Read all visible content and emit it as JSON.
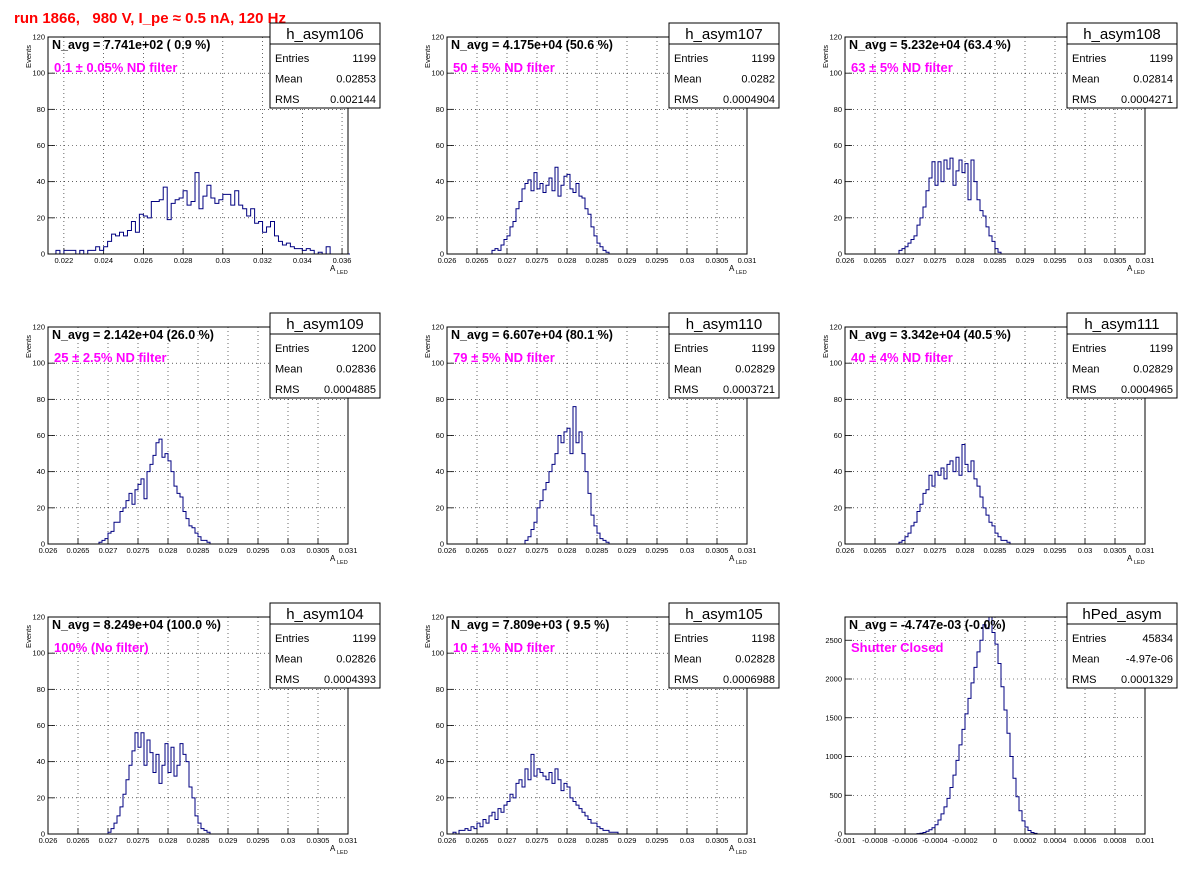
{
  "page_title": "run 1866,   980 V, I_pe ≈ 0.5 nA, 120 Hz",
  "colors": {
    "histogram": "#000080",
    "annotation": "#ff00ff",
    "title": "#ff0000",
    "grid": "#000000"
  },
  "chart_data": [
    {
      "type": "bar",
      "name": "h_asym106",
      "navg": "N_avg = 7.741e+02 ( 0.9 %)",
      "filter_label": "0.1 ± 0.05% ND filter",
      "stats": {
        "entries_label": "Entries",
        "entries": "1199",
        "mean_label": "Mean",
        "mean": "0.02853",
        "rms_label": "RMS",
        "rms": "0.002144"
      },
      "ylabel": "Events",
      "xlabel": "A",
      "xlabel_sub": "LED",
      "xlim": [
        0.0212,
        0.0363
      ],
      "ylim": [
        0,
        120
      ],
      "yticks": [
        0,
        20,
        40,
        60,
        80,
        100,
        120
      ],
      "xticks": [
        0.022,
        0.024,
        0.026,
        0.028,
        0.03,
        0.032,
        0.034,
        0.036
      ],
      "xtick_labels": [
        "0.022",
        "0.024",
        "0.026",
        "0.028",
        "0.03",
        "0.032",
        "0.034",
        "0.036"
      ],
      "bin_start": 0.0212,
      "bin_width": 0.0002,
      "values": [
        0,
        0,
        2,
        0,
        2,
        2,
        2,
        0,
        2,
        0,
        2,
        2,
        4,
        2,
        4,
        7,
        11,
        10,
        12,
        10,
        13,
        18,
        12,
        22,
        21,
        20,
        29,
        29,
        30,
        37,
        19,
        28,
        30,
        31,
        35,
        27,
        29,
        45,
        25,
        32,
        38,
        31,
        28,
        30,
        33,
        33,
        27,
        35,
        27,
        25,
        21,
        25,
        17,
        18,
        12,
        15,
        18,
        10,
        7,
        5,
        6,
        4,
        3,
        3,
        2,
        3,
        2,
        0,
        1,
        0,
        4,
        0,
        0,
        0,
        0,
        0
      ]
    },
    {
      "type": "bar",
      "name": "h_asym107",
      "navg": "N_avg = 4.175e+04 (50.6 %)",
      "filter_label": "50 ± 5% ND filter",
      "stats": {
        "entries_label": "Entries",
        "entries": "1199",
        "mean_label": "Mean",
        "mean": "0.0282",
        "rms_label": "RMS",
        "rms": "0.0004904"
      },
      "ylabel": "Events",
      "xlabel": "A",
      "xlabel_sub": "LED",
      "xlim": [
        0.026,
        0.031
      ],
      "ylim": [
        0,
        120
      ],
      "yticks": [
        0,
        20,
        40,
        60,
        80,
        100,
        120
      ],
      "xticks": [
        0.026,
        0.0265,
        0.027,
        0.0275,
        0.028,
        0.0285,
        0.029,
        0.0295,
        0.03,
        0.0305,
        0.031
      ],
      "xtick_labels": [
        "0.026",
        "0.0265",
        "0.027",
        "0.0275",
        "0.028",
        "0.0285",
        "0.029",
        "0.0295",
        "0.03",
        "0.0305",
        "0.031"
      ],
      "bin_start": 0.02675,
      "bin_width": 5e-05,
      "values": [
        2,
        3,
        2,
        5,
        8,
        10,
        15,
        18,
        25,
        29,
        36,
        39,
        41,
        35,
        45,
        36,
        39,
        34,
        38,
        42,
        35,
        48,
        32,
        38,
        43,
        44,
        36,
        34,
        39,
        32,
        31,
        25,
        22,
        15,
        10,
        6,
        4,
        2,
        1
      ]
    },
    {
      "type": "bar",
      "name": "h_asym108",
      "navg": "N_avg = 5.232e+04 (63.4 %)",
      "filter_label": "63 ± 5% ND filter",
      "stats": {
        "entries_label": "Entries",
        "entries": "1199",
        "mean_label": "Mean",
        "mean": "0.02814",
        "rms_label": "RMS",
        "rms": "0.0004271"
      },
      "ylabel": "Events",
      "xlabel": "A",
      "xlabel_sub": "LED",
      "xlim": [
        0.026,
        0.031
      ],
      "ylim": [
        0,
        120
      ],
      "yticks": [
        0,
        20,
        40,
        60,
        80,
        100,
        120
      ],
      "xticks": [
        0.026,
        0.0265,
        0.027,
        0.0275,
        0.028,
        0.0285,
        0.029,
        0.0295,
        0.03,
        0.0305,
        0.031
      ],
      "xtick_labels": [
        "0.026",
        "0.0265",
        "0.027",
        "0.0275",
        "0.028",
        "0.0285",
        "0.029",
        "0.0295",
        "0.03",
        "0.0305",
        "0.031"
      ],
      "bin_start": 0.0269,
      "bin_width": 5e-05,
      "values": [
        2,
        3,
        4,
        6,
        8,
        10,
        16,
        20,
        26,
        35,
        42,
        51,
        38,
        51,
        40,
        52,
        47,
        53,
        38,
        46,
        52,
        45,
        50,
        30,
        52,
        40,
        30,
        24,
        21,
        15,
        10,
        7,
        3,
        1
      ]
    },
    {
      "type": "bar",
      "name": "h_asym109",
      "navg": "N_avg = 2.142e+04 (26.0 %)",
      "filter_label": "25 ± 2.5% ND filter",
      "stats": {
        "entries_label": "Entries",
        "entries": "1200",
        "mean_label": "Mean",
        "mean": "0.02836",
        "rms_label": "RMS",
        "rms": "0.0004885"
      },
      "ylabel": "Events",
      "xlabel": "A",
      "xlabel_sub": "LED",
      "xlim": [
        0.026,
        0.031
      ],
      "ylim": [
        0,
        120
      ],
      "yticks": [
        0,
        20,
        40,
        60,
        80,
        100,
        120
      ],
      "xticks": [
        0.026,
        0.0265,
        0.027,
        0.0275,
        0.028,
        0.0285,
        0.029,
        0.0295,
        0.03,
        0.0305,
        0.031
      ],
      "xtick_labels": [
        "0.026",
        "0.0265",
        "0.027",
        "0.0275",
        "0.028",
        "0.0285",
        "0.029",
        "0.0295",
        "0.03",
        "0.0305",
        "0.031"
      ],
      "bin_start": 0.02685,
      "bin_width": 5e-05,
      "values": [
        1,
        2,
        3,
        6,
        7,
        12,
        12,
        18,
        20,
        24,
        28,
        22,
        30,
        33,
        36,
        25,
        40,
        44,
        49,
        56,
        58,
        48,
        50,
        46,
        40,
        32,
        28,
        26,
        18,
        14,
        10,
        9,
        6,
        4,
        2,
        2,
        1
      ]
    },
    {
      "type": "bar",
      "name": "h_asym110",
      "navg": "N_avg = 6.607e+04 (80.1 %)",
      "filter_label": "79 ± 5% ND filter",
      "stats": {
        "entries_label": "Entries",
        "entries": "1199",
        "mean_label": "Mean",
        "mean": "0.02829",
        "rms_label": "RMS",
        "rms": "0.0003721"
      },
      "ylabel": "Events",
      "xlabel": "A",
      "xlabel_sub": "LED",
      "xlim": [
        0.026,
        0.031
      ],
      "ylim": [
        0,
        120
      ],
      "yticks": [
        0,
        20,
        40,
        60,
        80,
        100,
        120
      ],
      "xticks": [
        0.026,
        0.0265,
        0.027,
        0.0275,
        0.028,
        0.0285,
        0.029,
        0.0295,
        0.03,
        0.0305,
        0.031
      ],
      "xtick_labels": [
        "0.026",
        "0.0265",
        "0.027",
        "0.0275",
        "0.028",
        "0.0285",
        "0.029",
        "0.0295",
        "0.03",
        "0.0305",
        "0.031"
      ],
      "bin_start": 0.0273,
      "bin_width": 5e-05,
      "values": [
        2,
        4,
        8,
        12,
        20,
        24,
        30,
        34,
        40,
        44,
        50,
        60,
        56,
        62,
        64,
        50,
        76,
        56,
        62,
        50,
        40,
        28,
        16,
        10,
        6,
        3,
        2,
        1
      ]
    },
    {
      "type": "bar",
      "name": "h_asym111",
      "navg": "N_avg = 3.342e+04 (40.5 %)",
      "filter_label": "40 ± 4% ND filter",
      "stats": {
        "entries_label": "Entries",
        "entries": "1199",
        "mean_label": "Mean",
        "mean": "0.02829",
        "rms_label": "RMS",
        "rms": "0.0004965"
      },
      "ylabel": "Events",
      "xlabel": "A",
      "xlabel_sub": "LED",
      "xlim": [
        0.026,
        0.031
      ],
      "ylim": [
        0,
        120
      ],
      "yticks": [
        0,
        20,
        40,
        60,
        80,
        100,
        120
      ],
      "xticks": [
        0.026,
        0.0265,
        0.027,
        0.0275,
        0.028,
        0.0285,
        0.029,
        0.0295,
        0.03,
        0.0305,
        0.031
      ],
      "xtick_labels": [
        "0.026",
        "0.0265",
        "0.027",
        "0.0275",
        "0.028",
        "0.0285",
        "0.029",
        "0.0295",
        "0.03",
        "0.0305",
        "0.031"
      ],
      "bin_start": 0.0269,
      "bin_width": 5e-05,
      "values": [
        1,
        2,
        4,
        6,
        10,
        12,
        18,
        22,
        28,
        30,
        38,
        32,
        40,
        38,
        42,
        36,
        44,
        46,
        40,
        48,
        38,
        55,
        44,
        40,
        46,
        36,
        32,
        26,
        20,
        16,
        12,
        10,
        6,
        4,
        2,
        2,
        1
      ]
    },
    {
      "type": "bar",
      "name": "h_asym104",
      "navg": "N_avg = 8.249e+04 (100.0 %)",
      "filter_label": "100% (No filter)",
      "stats": {
        "entries_label": "Entries",
        "entries": "1199",
        "mean_label": "Mean",
        "mean": "0.02826",
        "rms_label": "RMS",
        "rms": "0.0004393"
      },
      "ylabel": "Events",
      "xlabel": "A",
      "xlabel_sub": "LED",
      "xlim": [
        0.026,
        0.031
      ],
      "ylim": [
        0,
        120
      ],
      "yticks": [
        0,
        20,
        40,
        60,
        80,
        100,
        120
      ],
      "xticks": [
        0.026,
        0.0265,
        0.027,
        0.0275,
        0.028,
        0.0285,
        0.029,
        0.0295,
        0.03,
        0.0305,
        0.031
      ],
      "xtick_labels": [
        "0.026",
        "0.0265",
        "0.027",
        "0.0275",
        "0.028",
        "0.0285",
        "0.029",
        "0.0295",
        "0.03",
        "0.0305",
        "0.031"
      ],
      "bin_start": 0.027,
      "bin_width": 5e-05,
      "values": [
        1,
        3,
        6,
        10,
        15,
        22,
        30,
        38,
        46,
        56,
        48,
        56,
        38,
        52,
        45,
        34,
        44,
        28,
        38,
        50,
        34,
        48,
        32,
        38,
        50,
        44,
        40,
        26,
        20,
        10,
        6,
        3,
        2,
        1
      ]
    },
    {
      "type": "bar",
      "name": "h_asym105",
      "navg": "N_avg = 7.809e+03 ( 9.5 %)",
      "filter_label": "10 ± 1% ND filter",
      "stats": {
        "entries_label": "Entries",
        "entries": "1198",
        "mean_label": "Mean",
        "mean": "0.02828",
        "rms_label": "RMS",
        "rms": "0.0006988"
      },
      "ylabel": "Events",
      "xlabel": "A",
      "xlabel_sub": "LED",
      "xlim": [
        0.026,
        0.031
      ],
      "ylim": [
        0,
        120
      ],
      "yticks": [
        0,
        20,
        40,
        60,
        80,
        100,
        120
      ],
      "xticks": [
        0.026,
        0.0265,
        0.027,
        0.0275,
        0.028,
        0.0285,
        0.029,
        0.0295,
        0.03,
        0.0305,
        0.031
      ],
      "xtick_labels": [
        "0.026",
        "0.0265",
        "0.027",
        "0.0275",
        "0.028",
        "0.0285",
        "0.029",
        "0.0295",
        "0.03",
        "0.0305",
        "0.031"
      ],
      "bin_start": 0.0261,
      "bin_width": 5e-05,
      "values": [
        1,
        0,
        2,
        2,
        3,
        2,
        4,
        3,
        6,
        4,
        8,
        6,
        10,
        12,
        8,
        14,
        12,
        16,
        18,
        22,
        20,
        28,
        30,
        26,
        36,
        30,
        44,
        32,
        36,
        34,
        32,
        30,
        34,
        28,
        36,
        30,
        24,
        28,
        26,
        20,
        18,
        16,
        14,
        12,
        10,
        8,
        6,
        6,
        4,
        3,
        2,
        2,
        1,
        1,
        1
      ]
    },
    {
      "type": "bar",
      "name": "hPed_asym",
      "navg": "N_avg = -4.747e-03 (-0.0%)",
      "filter_label": "Shutter Closed",
      "stats": {
        "entries_label": "Entries",
        "entries": "45834",
        "mean_label": "Mean",
        "mean": "-4.97e-06",
        "rms_label": "RMS",
        "rms": "0.0001329"
      },
      "ylabel": "",
      "xlabel": "",
      "xlabel_sub": "",
      "xlim": [
        -0.001,
        0.001
      ],
      "ylim": [
        0,
        2800
      ],
      "yticks": [
        0,
        500,
        1000,
        1500,
        2000,
        2500
      ],
      "xticks": [
        -0.001,
        -0.0008,
        -0.0006,
        -0.0004,
        -0.0002,
        0,
        0.0002,
        0.0004,
        0.0006,
        0.0008,
        0.001
      ],
      "xtick_labels": [
        "-0.001",
        "-0.0008",
        "-0.0006",
        "-0.0004",
        "-0.0002",
        "0",
        "0.0002",
        "0.0004",
        "0.0006",
        "0.0008",
        "0.001"
      ],
      "bin_start": -0.00052,
      "bin_width": 2e-05,
      "values": [
        5,
        10,
        20,
        35,
        55,
        80,
        120,
        180,
        260,
        350,
        460,
        600,
        760,
        950,
        1150,
        1350,
        1550,
        1750,
        1950,
        2150,
        2350,
        2500,
        2700,
        2650,
        2800,
        2600,
        2450,
        2200,
        1900,
        1600,
        1300,
        1000,
        720,
        480,
        300,
        170,
        90,
        45,
        20,
        8
      ]
    }
  ]
}
